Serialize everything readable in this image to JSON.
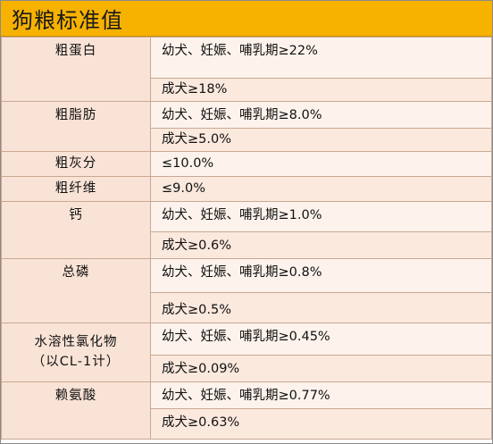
{
  "title": "狗粮标准值",
  "rows": [
    {
      "name": "粗蛋白",
      "values": [
        "幼犬、妊娠、哺乳期≥22%",
        "成犬≥18%"
      ]
    },
    {
      "name": "粗脂肪",
      "values": [
        "幼犬、妊娠、哺乳期≥8.0%",
        "成犬≥5.0%"
      ]
    },
    {
      "name": "粗灰分",
      "values": [
        "≤10.0%"
      ]
    },
    {
      "name": "粗纤维",
      "values": [
        "≤9.0%"
      ]
    },
    {
      "name": "钙",
      "values": [
        "幼犬、妊娠、哺乳期≥1.0%",
        "成犬≥0.6%"
      ]
    },
    {
      "name": "总磷",
      "values": [
        "幼犬、妊娠、哺乳期≥0.8%",
        "成犬≥0.5%"
      ]
    },
    {
      "name": "水溶性氯化物",
      "name_sub": "（以CL-1计）",
      "values": [
        "幼犬、妊娠、哺乳期≥0.45%",
        "成犬≥0.09%"
      ]
    },
    {
      "name": "赖氨酸",
      "values": [
        "幼犬、妊娠、哺乳期≥0.77%",
        "成犬≥0.63%"
      ]
    }
  ]
}
